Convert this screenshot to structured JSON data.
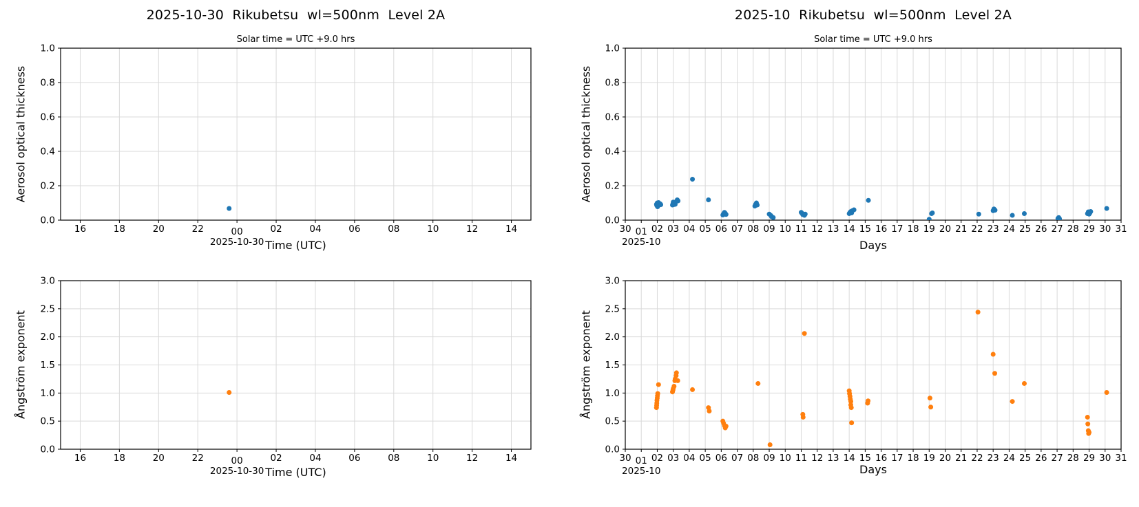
{
  "figure": {
    "background": "#ffffff",
    "text_color": "#000000",
    "grid_color": "#d9d9d9",
    "spine_color": "#000000"
  },
  "columns": [
    {
      "title": "2025-10-30  Rikubetsu  wl=500nm  Level 2A",
      "subtitle": "Solar time = UTC +9.0 hrs"
    },
    {
      "title": "2025-10  Rikubetsu  wl=500nm  Level 2A",
      "subtitle": "Solar time = UTC +9.0 hrs"
    }
  ],
  "chart_data": [
    {
      "id": "daily-aot",
      "type": "scatter",
      "title": "2025-10-30  Rikubetsu  wl=500nm  Level 2A",
      "subtitle": "Solar time = UTC +9.0 hrs",
      "xlabel": "Time (UTC)",
      "ylabel": "Aerosol optical thickness",
      "xlim": [
        15,
        39
      ],
      "ylim": [
        0,
        1
      ],
      "grid": true,
      "marker_color": "#1f77b4",
      "xticks": [
        {
          "v": 16,
          "label": "16"
        },
        {
          "v": 18,
          "label": "18"
        },
        {
          "v": 20,
          "label": "20"
        },
        {
          "v": 22,
          "label": "22"
        },
        {
          "v": 24,
          "label": "00",
          "major": true,
          "date": "2025-10-30"
        },
        {
          "v": 26,
          "label": "02"
        },
        {
          "v": 28,
          "label": "04"
        },
        {
          "v": 30,
          "label": "06"
        },
        {
          "v": 32,
          "label": "08"
        },
        {
          "v": 34,
          "label": "10"
        },
        {
          "v": 36,
          "label": "12"
        },
        {
          "v": 38,
          "label": "14"
        }
      ],
      "yticks": [
        {
          "v": 0.0,
          "label": "0.0"
        },
        {
          "v": 0.2,
          "label": "0.2"
        },
        {
          "v": 0.4,
          "label": "0.4"
        },
        {
          "v": 0.6,
          "label": "0.6"
        },
        {
          "v": 0.8,
          "label": "0.8"
        },
        {
          "v": 1.0,
          "label": "1.0"
        }
      ],
      "points": [
        [
          23.6,
          0.068
        ]
      ]
    },
    {
      "id": "monthly-aot",
      "type": "scatter",
      "title": "2025-10  Rikubetsu  wl=500nm  Level 2A",
      "subtitle": "Solar time = UTC +9.0 hrs",
      "xlabel": "Days",
      "ylabel": "Aerosol optical thickness",
      "xlim": [
        0,
        31
      ],
      "ylim": [
        0,
        1
      ],
      "grid": true,
      "marker_color": "#1f77b4",
      "xticks": [
        {
          "v": 0,
          "label": "30"
        },
        {
          "v": 1,
          "label": "01",
          "major": true,
          "date": "2025-10"
        },
        {
          "v": 2,
          "label": "02"
        },
        {
          "v": 3,
          "label": "03"
        },
        {
          "v": 4,
          "label": "04"
        },
        {
          "v": 5,
          "label": "05"
        },
        {
          "v": 6,
          "label": "06"
        },
        {
          "v": 7,
          "label": "07"
        },
        {
          "v": 8,
          "label": "08"
        },
        {
          "v": 9,
          "label": "09"
        },
        {
          "v": 10,
          "label": "10"
        },
        {
          "v": 11,
          "label": "11"
        },
        {
          "v": 12,
          "label": "12"
        },
        {
          "v": 13,
          "label": "13"
        },
        {
          "v": 14,
          "label": "14"
        },
        {
          "v": 15,
          "label": "15"
        },
        {
          "v": 16,
          "label": "16"
        },
        {
          "v": 17,
          "label": "17"
        },
        {
          "v": 18,
          "label": "18"
        },
        {
          "v": 19,
          "label": "19"
        },
        {
          "v": 20,
          "label": "20"
        },
        {
          "v": 21,
          "label": "21"
        },
        {
          "v": 22,
          "label": "22"
        },
        {
          "v": 23,
          "label": "23"
        },
        {
          "v": 24,
          "label": "24"
        },
        {
          "v": 25,
          "label": "25"
        },
        {
          "v": 26,
          "label": "26"
        },
        {
          "v": 27,
          "label": "27"
        },
        {
          "v": 28,
          "label": "28"
        },
        {
          "v": 29,
          "label": "29"
        },
        {
          "v": 30,
          "label": "30"
        },
        {
          "v": 31,
          "label": "31"
        }
      ],
      "yticks": [
        {
          "v": 0.0,
          "label": "0.0"
        },
        {
          "v": 0.2,
          "label": "0.2"
        },
        {
          "v": 0.4,
          "label": "0.4"
        },
        {
          "v": 0.6,
          "label": "0.6"
        },
        {
          "v": 0.8,
          "label": "0.8"
        },
        {
          "v": 1.0,
          "label": "1.0"
        }
      ],
      "points": [
        [
          1.95,
          0.092
        ],
        [
          1.97,
          0.085
        ],
        [
          2.0,
          0.1
        ],
        [
          2.02,
          0.078
        ],
        [
          2.05,
          0.092
        ],
        [
          2.08,
          0.102
        ],
        [
          2.12,
          0.088
        ],
        [
          2.18,
          0.095
        ],
        [
          2.22,
          0.09
        ],
        [
          2.95,
          0.088
        ],
        [
          2.98,
          0.096
        ],
        [
          3.0,
          0.105
        ],
        [
          3.02,
          0.09
        ],
        [
          3.07,
          0.1
        ],
        [
          3.12,
          0.092
        ],
        [
          3.18,
          0.108
        ],
        [
          3.25,
          0.118
        ],
        [
          3.3,
          0.112
        ],
        [
          4.2,
          0.238
        ],
        [
          5.2,
          0.118
        ],
        [
          6.1,
          0.03
        ],
        [
          6.15,
          0.038
        ],
        [
          6.2,
          0.045
        ],
        [
          6.25,
          0.04
        ],
        [
          6.3,
          0.033
        ],
        [
          8.1,
          0.082
        ],
        [
          8.15,
          0.092
        ],
        [
          8.2,
          0.1
        ],
        [
          8.25,
          0.088
        ],
        [
          9.0,
          0.035
        ],
        [
          9.1,
          0.027
        ],
        [
          9.15,
          0.02
        ],
        [
          9.25,
          0.015
        ],
        [
          11.0,
          0.045
        ],
        [
          11.05,
          0.04
        ],
        [
          11.1,
          0.032
        ],
        [
          11.2,
          0.028
        ],
        [
          11.25,
          0.035
        ],
        [
          14.0,
          0.038
        ],
        [
          14.05,
          0.045
        ],
        [
          14.1,
          0.05
        ],
        [
          14.15,
          0.042
        ],
        [
          14.2,
          0.055
        ],
        [
          14.3,
          0.06
        ],
        [
          15.2,
          0.115
        ],
        [
          19.0,
          0.005
        ],
        [
          19.15,
          0.038
        ],
        [
          19.2,
          0.042
        ],
        [
          22.1,
          0.035
        ],
        [
          23.0,
          0.055
        ],
        [
          23.05,
          0.065
        ],
        [
          23.12,
          0.058
        ],
        [
          24.2,
          0.028
        ],
        [
          24.95,
          0.038
        ],
        [
          27.05,
          0.01
        ],
        [
          27.1,
          0.015
        ],
        [
          27.15,
          0.008
        ],
        [
          28.9,
          0.038
        ],
        [
          28.95,
          0.048
        ],
        [
          29.0,
          0.035
        ],
        [
          29.05,
          0.042
        ],
        [
          29.1,
          0.05
        ],
        [
          30.1,
          0.068
        ]
      ]
    },
    {
      "id": "daily-angstrom",
      "type": "scatter",
      "title": null,
      "subtitle": null,
      "xlabel": "Time (UTC)",
      "ylabel": "Ångström exponent",
      "xlim": [
        15,
        39
      ],
      "ylim": [
        0,
        3
      ],
      "grid": true,
      "marker_color": "#ff7f0e",
      "xticks": [
        {
          "v": 16,
          "label": "16"
        },
        {
          "v": 18,
          "label": "18"
        },
        {
          "v": 20,
          "label": "20"
        },
        {
          "v": 22,
          "label": "22"
        },
        {
          "v": 24,
          "label": "00",
          "major": true,
          "date": "2025-10-30"
        },
        {
          "v": 26,
          "label": "02"
        },
        {
          "v": 28,
          "label": "04"
        },
        {
          "v": 30,
          "label": "06"
        },
        {
          "v": 32,
          "label": "08"
        },
        {
          "v": 34,
          "label": "10"
        },
        {
          "v": 36,
          "label": "12"
        },
        {
          "v": 38,
          "label": "14"
        }
      ],
      "yticks": [
        {
          "v": 0.0,
          "label": "0.0"
        },
        {
          "v": 0.5,
          "label": "0.5"
        },
        {
          "v": 1.0,
          "label": "1.0"
        },
        {
          "v": 1.5,
          "label": "1.5"
        },
        {
          "v": 2.0,
          "label": "2.0"
        },
        {
          "v": 2.5,
          "label": "2.5"
        },
        {
          "v": 3.0,
          "label": "3.0"
        }
      ],
      "points": [
        [
          23.6,
          1.01
        ]
      ]
    },
    {
      "id": "monthly-angstrom",
      "type": "scatter",
      "title": null,
      "subtitle": null,
      "xlabel": "Days",
      "ylabel": "Ångström exponent",
      "xlim": [
        0,
        31
      ],
      "ylim": [
        0,
        3
      ],
      "grid": true,
      "marker_color": "#ff7f0e",
      "xticks": [
        {
          "v": 0,
          "label": "30"
        },
        {
          "v": 1,
          "label": "01",
          "major": true,
          "date": "2025-10"
        },
        {
          "v": 2,
          "label": "02"
        },
        {
          "v": 3,
          "label": "03"
        },
        {
          "v": 4,
          "label": "04"
        },
        {
          "v": 5,
          "label": "05"
        },
        {
          "v": 6,
          "label": "06"
        },
        {
          "v": 7,
          "label": "07"
        },
        {
          "v": 8,
          "label": "08"
        },
        {
          "v": 9,
          "label": "09"
        },
        {
          "v": 10,
          "label": "10"
        },
        {
          "v": 11,
          "label": "11"
        },
        {
          "v": 12,
          "label": "12"
        },
        {
          "v": 13,
          "label": "13"
        },
        {
          "v": 14,
          "label": "14"
        },
        {
          "v": 15,
          "label": "15"
        },
        {
          "v": 16,
          "label": "16"
        },
        {
          "v": 17,
          "label": "17"
        },
        {
          "v": 18,
          "label": "18"
        },
        {
          "v": 19,
          "label": "19"
        },
        {
          "v": 20,
          "label": "20"
        },
        {
          "v": 21,
          "label": "21"
        },
        {
          "v": 22,
          "label": "22"
        },
        {
          "v": 23,
          "label": "23"
        },
        {
          "v": 24,
          "label": "24"
        },
        {
          "v": 25,
          "label": "25"
        },
        {
          "v": 26,
          "label": "26"
        },
        {
          "v": 27,
          "label": "27"
        },
        {
          "v": 28,
          "label": "28"
        },
        {
          "v": 29,
          "label": "29"
        },
        {
          "v": 30,
          "label": "30"
        },
        {
          "v": 31,
          "label": "31"
        }
      ],
      "yticks": [
        {
          "v": 0.0,
          "label": "0.0"
        },
        {
          "v": 0.5,
          "label": "0.5"
        },
        {
          "v": 1.0,
          "label": "1.0"
        },
        {
          "v": 1.5,
          "label": "1.5"
        },
        {
          "v": 2.0,
          "label": "2.0"
        },
        {
          "v": 2.5,
          "label": "2.5"
        },
        {
          "v": 3.0,
          "label": "3.0"
        }
      ],
      "points": [
        [
          1.95,
          0.74
        ],
        [
          1.96,
          0.78
        ],
        [
          1.97,
          0.82
        ],
        [
          1.98,
          0.87
        ],
        [
          2.0,
          0.91
        ],
        [
          2.01,
          0.95
        ],
        [
          2.03,
          0.99
        ],
        [
          2.08,
          1.15
        ],
        [
          2.95,
          1.02
        ],
        [
          2.98,
          1.05
        ],
        [
          3.0,
          1.08
        ],
        [
          3.05,
          1.12
        ],
        [
          3.1,
          1.22
        ],
        [
          3.12,
          1.25
        ],
        [
          3.18,
          1.31
        ],
        [
          3.2,
          1.36
        ],
        [
          3.28,
          1.22
        ],
        [
          4.2,
          1.06
        ],
        [
          5.2,
          0.74
        ],
        [
          5.25,
          0.68
        ],
        [
          6.1,
          0.5
        ],
        [
          6.15,
          0.46
        ],
        [
          6.2,
          0.42
        ],
        [
          6.25,
          0.38
        ],
        [
          6.3,
          0.41
        ],
        [
          8.3,
          1.17
        ],
        [
          9.05,
          0.08
        ],
        [
          11.1,
          0.62
        ],
        [
          11.12,
          0.57
        ],
        [
          11.2,
          2.06
        ],
        [
          14.0,
          1.04
        ],
        [
          14.02,
          0.99
        ],
        [
          14.05,
          0.94
        ],
        [
          14.07,
          0.89
        ],
        [
          14.1,
          0.85
        ],
        [
          14.1,
          0.79
        ],
        [
          14.13,
          0.74
        ],
        [
          14.15,
          0.47
        ],
        [
          15.15,
          0.82
        ],
        [
          15.18,
          0.86
        ],
        [
          19.05,
          0.91
        ],
        [
          19.1,
          0.75
        ],
        [
          22.05,
          2.44
        ],
        [
          23.0,
          1.69
        ],
        [
          23.1,
          1.35
        ],
        [
          24.2,
          0.85
        ],
        [
          24.95,
          1.17
        ],
        [
          28.9,
          0.57
        ],
        [
          28.92,
          0.45
        ],
        [
          28.95,
          0.33
        ],
        [
          28.97,
          0.28
        ],
        [
          29.0,
          0.3
        ],
        [
          30.1,
          1.01
        ]
      ]
    }
  ]
}
